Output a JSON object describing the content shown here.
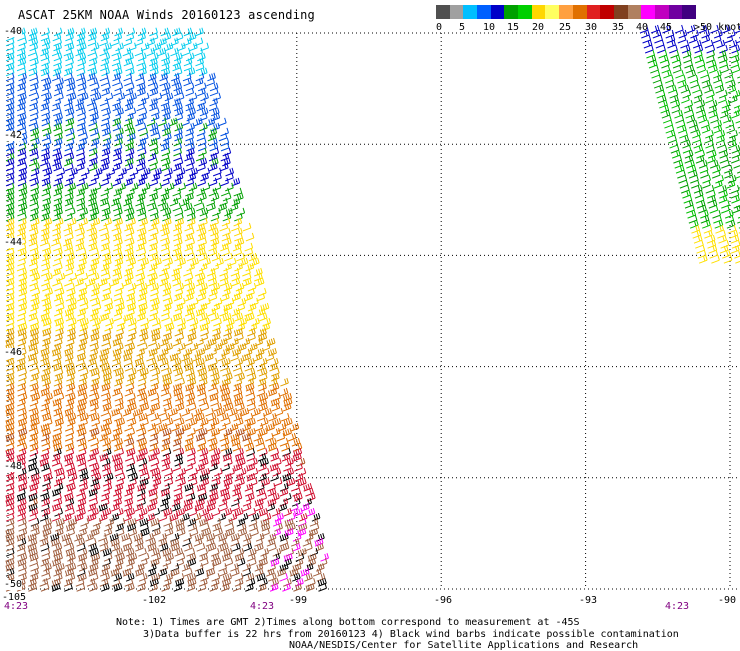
{
  "title": "ASCAT 25KM NOAA Winds 20160123 ascending",
  "legend": {
    "colors": [
      "#505050",
      "#a0a0a0",
      "#00bfff",
      "#0060ff",
      "#0000c8",
      "#00a000",
      "#00d000",
      "#ffd700",
      "#ffff60",
      "#ffa040",
      "#e07000",
      "#e02020",
      "#c00000",
      "#804020",
      "#b08060",
      "#ff00ff",
      "#c000c0",
      "#7000a0",
      "#400080"
    ],
    "ticks": [
      "0",
      "5",
      "10",
      "15",
      "20",
      "25",
      "30",
      "35",
      "40",
      "45",
      ">50 knots"
    ]
  },
  "axes": {
    "lon_labels": [
      "-105",
      "-102",
      "-99",
      "-96",
      "-93",
      "-90"
    ],
    "lat_labels": [
      "-40",
      "-42",
      "-44",
      "-46",
      "-48",
      "-50"
    ]
  },
  "times": [
    "4:23",
    "4:23",
    "4:23"
  ],
  "notes": {
    "line1": "Note: 1) Times are GMT 2)Times along bottom correspond to measurement at -45S",
    "line2": "3)Data buffer is 22 hrs from 20160123 4) Black wind barbs indicate possible contamination",
    "line3": "NOAA/NESDIS/Center for Satellite Applications and Research"
  },
  "swaths": [
    {
      "name": "left",
      "lon_range": [
        -105,
        -99
      ]
    },
    {
      "name": "right",
      "lon_range": [
        -91.5,
        -90
      ]
    }
  ],
  "wind_bands": [
    {
      "lat_range": [
        -40.0,
        -40.8
      ],
      "color": "#00ccee"
    },
    {
      "lat_range": [
        -40.8,
        -42.2
      ],
      "color": "#0050e0"
    },
    {
      "lat_range": [
        -42.2,
        -42.8
      ],
      "color": "#0000c8"
    },
    {
      "lat_range": [
        -42.8,
        -43.4
      ],
      "color": "#00a000"
    },
    {
      "lat_range": [
        -43.4,
        -43.9
      ],
      "color": "#ffd700"
    },
    {
      "lat_range": [
        -43.9,
        -45.4
      ],
      "color": "#ffe000"
    },
    {
      "lat_range": [
        -45.4,
        -46.4
      ],
      "color": "#e0a000"
    },
    {
      "lat_range": [
        -46.4,
        -47.6
      ],
      "color": "#e07000"
    },
    {
      "lat_range": [
        -47.6,
        -48.8
      ],
      "color": "#d01030"
    },
    {
      "lat_range": [
        -48.8,
        -50.0
      ],
      "color": "#a06040"
    }
  ]
}
